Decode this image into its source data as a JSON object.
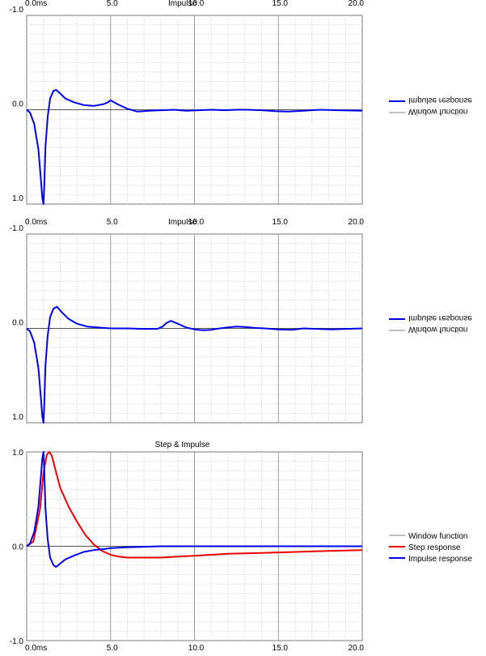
{
  "charts_meta": {
    "colors": {
      "impulse": "#0000ee",
      "step": "#ee0000",
      "window": "#808080"
    }
  },
  "chart_data": [
    {
      "type": "line",
      "title": "Impulse",
      "mirrored": true,
      "xlim": [
        0,
        20
      ],
      "ylim": [
        -1,
        1
      ],
      "x_ticks": [
        "0.0ms",
        "5.0",
        "10.0",
        "15.0",
        "20.0"
      ],
      "y_ticks": [
        "1.0",
        "0.0",
        "-1.0"
      ],
      "legend": [
        "Impulse response",
        "Window function"
      ],
      "series": [
        {
          "name": "Impulse response",
          "color": "#0000ee",
          "x": [
            0,
            0.2,
            0.45,
            0.7,
            0.85,
            0.93,
            1.0,
            1.05,
            1.12,
            1.25,
            1.4,
            1.6,
            1.75,
            1.95,
            2.3,
            2.8,
            3.4,
            4.0,
            4.6,
            4.85,
            5.0,
            5.1,
            5.4,
            6.0,
            6.6,
            7.3,
            8.0,
            8.8,
            9.5,
            10.3,
            11.0,
            11.8,
            12.5,
            13.2,
            14.0,
            14.8,
            15.6,
            16.5,
            17.5,
            18.5,
            20.0
          ],
          "y": [
            0,
            0.03,
            0.15,
            0.42,
            0.74,
            0.93,
            1.0,
            0.8,
            0.4,
            0.08,
            -0.12,
            -0.2,
            -0.21,
            -0.18,
            -0.12,
            -0.08,
            -0.05,
            -0.04,
            -0.06,
            -0.08,
            -0.1,
            -0.09,
            -0.06,
            -0.01,
            0.02,
            0.01,
            0.005,
            0.0,
            0.01,
            0.005,
            0.0,
            0.005,
            0.0,
            0.0,
            0.005,
            0.015,
            0.02,
            0.01,
            0.0,
            0.005,
            0.01
          ]
        },
        {
          "name": "Window function",
          "color": "#808080",
          "x": [],
          "y": []
        }
      ]
    },
    {
      "type": "line",
      "title": "Impulse",
      "mirrored": true,
      "xlim": [
        0,
        20
      ],
      "ylim": [
        -1,
        1
      ],
      "x_ticks": [
        "0.0ms",
        "5.0",
        "10.0",
        "15.0",
        "20.0"
      ],
      "y_ticks": [
        "1.0",
        "0.0",
        "-1.0"
      ],
      "legend": [
        "Impulse response",
        "Window function"
      ],
      "series": [
        {
          "name": "Impulse response",
          "color": "#0000ee",
          "x": [
            0,
            0.2,
            0.45,
            0.7,
            0.85,
            0.93,
            1.0,
            1.05,
            1.12,
            1.25,
            1.4,
            1.6,
            1.8,
            2.1,
            2.5,
            3.0,
            3.6,
            4.2,
            5.0,
            6.0,
            7.0,
            7.8,
            8.1,
            8.35,
            8.6,
            9.0,
            9.5,
            10.0,
            10.5,
            11.0,
            11.5,
            12.0,
            12.5,
            13.0,
            13.6,
            14.2,
            15.0,
            15.8,
            16.5,
            17.3,
            18.2,
            19.0,
            20.0
          ],
          "y": [
            0,
            0.03,
            0.15,
            0.42,
            0.74,
            0.93,
            1.0,
            0.8,
            0.4,
            0.08,
            -0.12,
            -0.21,
            -0.23,
            -0.17,
            -0.1,
            -0.05,
            -0.02,
            -0.01,
            0.0,
            0.0,
            0.005,
            0.005,
            -0.02,
            -0.06,
            -0.08,
            -0.05,
            -0.01,
            0.01,
            0.02,
            0.015,
            0.0,
            -0.01,
            -0.02,
            -0.015,
            -0.005,
            0.0,
            0.01,
            0.015,
            0.0,
            0.005,
            0.01,
            0.005,
            0.0
          ]
        },
        {
          "name": "Window function",
          "color": "#808080",
          "x": [],
          "y": []
        }
      ]
    },
    {
      "type": "line",
      "title": "Step & Impulse",
      "mirrored": false,
      "xlim": [
        0,
        20
      ],
      "ylim": [
        -1,
        1
      ],
      "x_ticks": [
        "0.0ms",
        "5.0",
        "10.0",
        "15.0",
        "20.0"
      ],
      "y_ticks": [
        "1.0",
        "0.0",
        "-1.0"
      ],
      "legend": [
        "Window function",
        "Step response",
        "Impulse response"
      ],
      "series": [
        {
          "name": "Window function",
          "color": "#808080",
          "x": [],
          "y": []
        },
        {
          "name": "Step response",
          "color": "#ee0000",
          "x": [
            0,
            0.4,
            0.8,
            1.0,
            1.2,
            1.35,
            1.5,
            1.7,
            2.0,
            2.5,
            3.0,
            3.5,
            4.0,
            4.5,
            5.0,
            5.5,
            6.0,
            7.0,
            8.0,
            9.0,
            10.0,
            11.0,
            12.0,
            13.0,
            14.0,
            15.0,
            16.0,
            17.0,
            18.0,
            19.0,
            20.0
          ],
          "y": [
            0,
            0.05,
            0.4,
            0.78,
            0.97,
            1.0,
            0.96,
            0.82,
            0.62,
            0.42,
            0.26,
            0.12,
            0.02,
            -0.05,
            -0.09,
            -0.11,
            -0.12,
            -0.12,
            -0.12,
            -0.11,
            -0.1,
            -0.09,
            -0.08,
            -0.075,
            -0.07,
            -0.065,
            -0.06,
            -0.055,
            -0.05,
            -0.045,
            -0.04
          ]
        },
        {
          "name": "Impulse response",
          "color": "#0000ee",
          "x": [
            0,
            0.2,
            0.45,
            0.7,
            0.85,
            0.93,
            1.0,
            1.05,
            1.12,
            1.25,
            1.4,
            1.6,
            1.75,
            1.95,
            2.3,
            2.8,
            3.4,
            4.0,
            4.6,
            5.0,
            6.0,
            7.0,
            8.0,
            9.0,
            10.0,
            12.0,
            14.0,
            16.0,
            18.0,
            20.0
          ],
          "y": [
            0,
            0.03,
            0.15,
            0.42,
            0.74,
            0.93,
            1.0,
            0.8,
            0.4,
            0.08,
            -0.12,
            -0.2,
            -0.22,
            -0.19,
            -0.14,
            -0.1,
            -0.06,
            -0.04,
            -0.03,
            -0.02,
            -0.01,
            -0.005,
            0,
            0,
            0,
            0,
            0,
            0,
            0,
            0
          ]
        }
      ]
    }
  ]
}
